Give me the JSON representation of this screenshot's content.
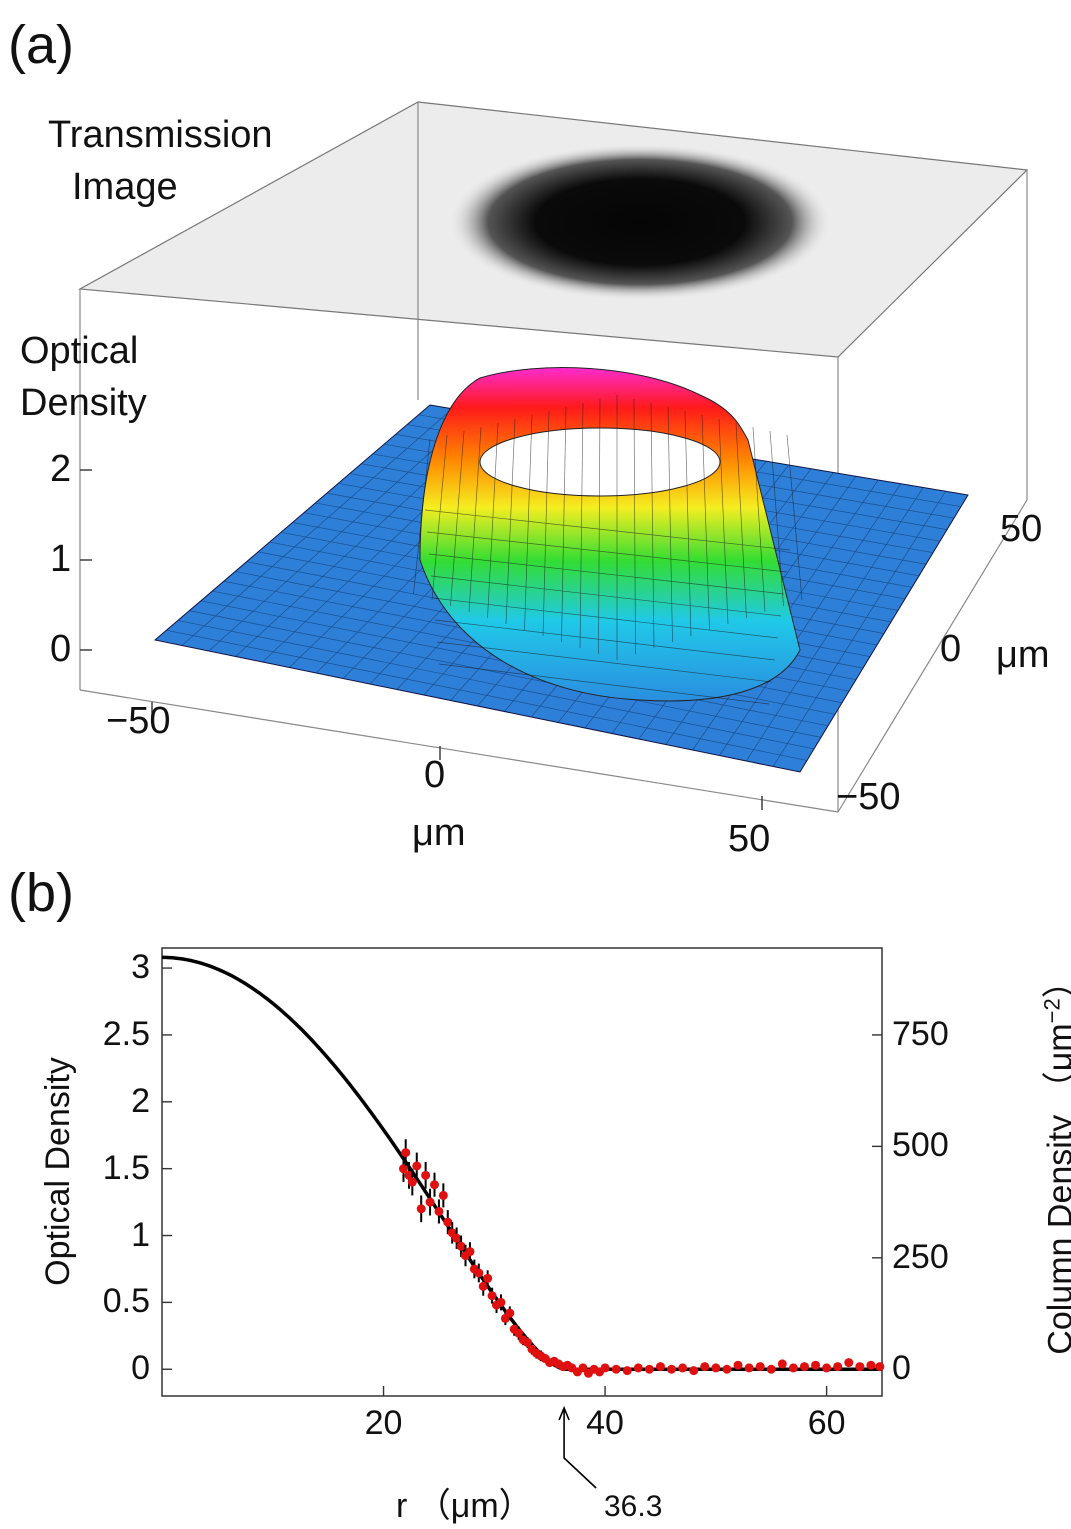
{
  "panel_a": {
    "label": "(a)",
    "transmission_label": [
      "Transmission",
      "Image"
    ],
    "od_label": [
      "Optical",
      "Density"
    ],
    "z_ticks": [
      "2",
      "1",
      "0"
    ],
    "x_ticks": [
      "−50",
      "0",
      "50"
    ],
    "x_unit": "μm",
    "y_ticks": [
      "50",
      "0",
      "−50"
    ],
    "y_unit": "μm",
    "colors": [
      "#1f6fd1",
      "#20c9e8",
      "#33dd33",
      "#f5ee20",
      "#ff8a00",
      "#ff1a1a",
      "#ff2bd0"
    ]
  },
  "panel_b": {
    "label": "(b)",
    "annotation": "36.3"
  },
  "chart_data": {
    "type": "scatter",
    "xlabel": "r （μm）",
    "ylabel": "Optical Density",
    "ylabel_right": "Column Density （μm",
    "ylabel_right_exp": "−2",
    "ylabel_right_close": "）",
    "xlim": [
      0,
      65
    ],
    "ylim": [
      -0.2,
      3.15
    ],
    "xticks": [
      "20",
      "40",
      "60"
    ],
    "xtick_values": [
      20,
      40,
      60
    ],
    "yticks": [
      "0",
      "0.5",
      "1",
      "1.5",
      "2",
      "2.5",
      "3"
    ],
    "ytick_values": [
      0,
      0.5,
      1,
      1.5,
      2,
      2.5,
      3
    ],
    "yticks_right": [
      "0",
      "250",
      "500",
      "750"
    ],
    "ytick_right_values": [
      0,
      250,
      500,
      750
    ],
    "right_scale_per_od": 300,
    "fit_peak": 3.08,
    "fit_radius": 36.3,
    "annotation_x": 36.3,
    "series": [
      {
        "marker_color": "#e01010",
        "x": [
          21.8,
          22.0,
          22.3,
          22.6,
          23.0,
          23.4,
          23.8,
          24.2,
          24.6,
          25.0,
          25.4,
          25.8,
          26.2,
          26.6,
          27.0,
          27.4,
          27.8,
          28.2,
          28.6,
          29.0,
          29.4,
          29.8,
          30.2,
          30.6,
          31.0,
          31.4,
          31.8,
          32.2,
          32.6,
          33.0,
          33.4,
          33.8,
          34.2,
          34.6,
          35.0,
          35.4,
          35.8,
          36.2,
          36.6,
          37.0,
          37.5,
          38.0,
          38.5,
          39.0,
          39.5,
          40.0,
          41.0,
          42.0,
          43.0,
          44.0,
          45.0,
          46.0,
          47.0,
          48.0,
          49.0,
          50.0,
          51.0,
          52.0,
          53.0,
          54.0,
          55.0,
          56.0,
          57.0,
          58.0,
          59.0,
          60.0,
          61.0,
          62.0,
          63.0,
          64.0,
          64.8
        ],
        "y": [
          1.5,
          1.62,
          1.45,
          1.4,
          1.52,
          1.2,
          1.45,
          1.25,
          1.38,
          1.18,
          1.3,
          1.1,
          1.02,
          0.98,
          0.92,
          0.85,
          0.88,
          0.75,
          0.72,
          0.62,
          0.68,
          0.55,
          0.48,
          0.5,
          0.38,
          0.42,
          0.3,
          0.27,
          0.22,
          0.2,
          0.15,
          0.12,
          0.1,
          0.08,
          0.05,
          0.06,
          0.04,
          0.02,
          0.03,
          0.01,
          -0.02,
          0.01,
          -0.03,
          0.0,
          -0.02,
          0.01,
          0.0,
          -0.01,
          0.01,
          0.0,
          0.02,
          0.0,
          0.01,
          -0.01,
          0.02,
          0.01,
          0.0,
          0.03,
          0.01,
          0.02,
          0.0,
          0.04,
          0.01,
          0.02,
          0.03,
          0.01,
          0.02,
          0.05,
          0.02,
          0.03,
          0.02
        ],
        "err": [
          0.1,
          0.1,
          0.1,
          0.1,
          0.1,
          0.1,
          0.1,
          0.1,
          0.09,
          0.09,
          0.09,
          0.09,
          0.08,
          0.08,
          0.08,
          0.08,
          0.07,
          0.07,
          0.07,
          0.07,
          0.06,
          0.06,
          0.06,
          0.06,
          0.05,
          0.05,
          0.05,
          0.05,
          0.04,
          0.04,
          0.04,
          0.04,
          0.04,
          0.03,
          0.03,
          0.03,
          0.03,
          0.03,
          0.03,
          0.03,
          0.03,
          0.03,
          0.03,
          0.03,
          0.03,
          0.03,
          0.03,
          0.03,
          0.03,
          0.03,
          0.03,
          0.03,
          0.03,
          0.03,
          0.03,
          0.03,
          0.03,
          0.03,
          0.03,
          0.03,
          0.03,
          0.03,
          0.03,
          0.03,
          0.03,
          0.03,
          0.03,
          0.03,
          0.03,
          0.03,
          0.03
        ]
      }
    ]
  }
}
